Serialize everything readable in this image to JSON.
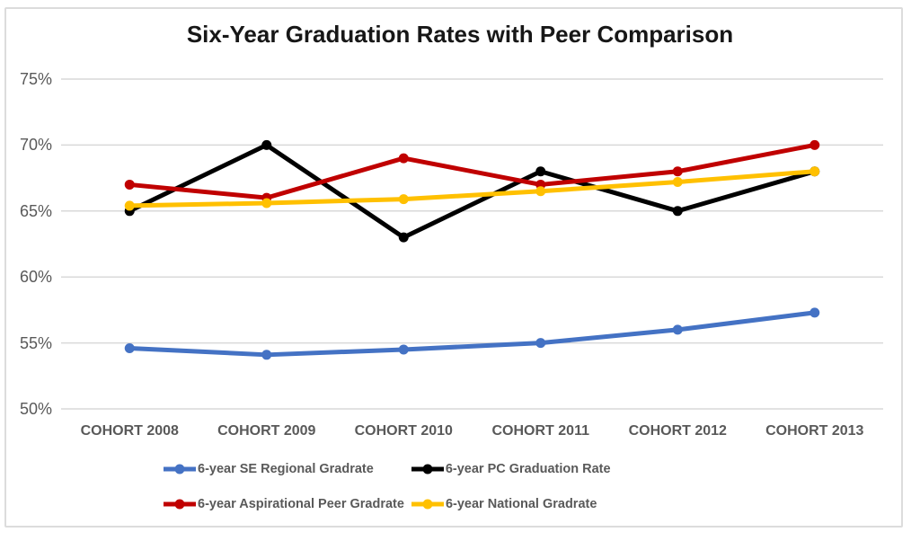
{
  "chart_data": {
    "type": "line",
    "title": "Six-Year Graduation Rates with Peer Comparison",
    "categories": [
      "COHORT 2008",
      "COHORT 2009",
      "COHORT 2010",
      "COHORT 2011",
      "COHORT 2012",
      "COHORT 2013"
    ],
    "series": [
      {
        "name": "6-year SE Regional Gradrate",
        "color": "#4472C4",
        "values": [
          54.6,
          54.1,
          54.5,
          55.0,
          56.0,
          57.3
        ]
      },
      {
        "name": "6-year PC Graduation Rate",
        "color": "#000000",
        "values": [
          65,
          70,
          63,
          68,
          65,
          68
        ]
      },
      {
        "name": "6-year Aspirational Peer Gradrate",
        "color": "#C00000",
        "values": [
          67,
          66,
          69,
          67,
          68,
          70
        ]
      },
      {
        "name": "6-year National Gradrate",
        "color": "#FFC000",
        "values": [
          65.4,
          65.6,
          65.9,
          66.5,
          67.2,
          68.0
        ]
      }
    ],
    "ylim": [
      50,
      75
    ],
    "yticks": [
      {
        "value": 75,
        "label": "75%"
      },
      {
        "value": 70,
        "label": "70%"
      },
      {
        "value": 65,
        "label": "65%"
      },
      {
        "value": 60,
        "label": "60%"
      },
      {
        "value": 55,
        "label": "55%"
      },
      {
        "value": 50,
        "label": "50%"
      }
    ],
    "xlabel": "",
    "ylabel": "",
    "grid": true,
    "legend_position": "bottom",
    "legend_rows": [
      [
        0,
        1
      ],
      [
        2,
        3
      ]
    ],
    "styles": {
      "gridline_color": "#d9d9d9",
      "axis_label_color": "#595959",
      "legend_text_color": "#595959",
      "title_color": "#171717",
      "frame_border_color": "#dcdcdc"
    }
  }
}
